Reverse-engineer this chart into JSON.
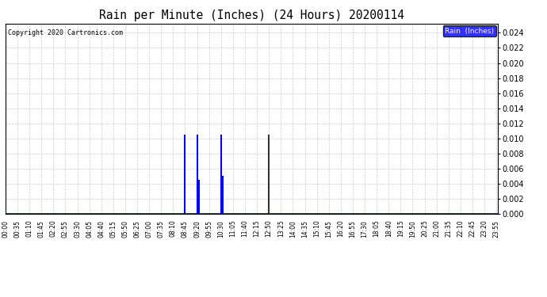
{
  "title": "Rain per Minute (Inches) (24 Hours) 20200114",
  "copyright_text": "Copyright 2020 Cartronics.com",
  "legend_label": "Rain  (Inches)",
  "legend_bg": "#0000ff",
  "legend_fg": "#ffffff",
  "baseline_color": "#0000ff",
  "bg_color": "#ffffff",
  "grid_color": "#cccccc",
  "border_color": "#000000",
  "ylim": [
    0.0,
    0.0252
  ],
  "yticks": [
    0.0,
    0.002,
    0.004,
    0.006,
    0.008,
    0.01,
    0.012,
    0.014,
    0.016,
    0.018,
    0.02,
    0.022,
    0.024
  ],
  "total_minutes": 1440,
  "x_tick_labels": [
    "00:00",
    "00:35",
    "01:10",
    "01:45",
    "02:20",
    "02:55",
    "03:30",
    "04:05",
    "04:40",
    "05:15",
    "05:50",
    "06:25",
    "07:00",
    "07:35",
    "08:10",
    "08:45",
    "09:20",
    "09:55",
    "10:30",
    "11:05",
    "11:40",
    "12:15",
    "12:50",
    "13:25",
    "14:00",
    "14:35",
    "15:10",
    "15:45",
    "16:20",
    "16:55",
    "17:30",
    "18:05",
    "18:40",
    "19:15",
    "19:50",
    "20:25",
    "21:00",
    "21:35",
    "22:10",
    "22:45",
    "23:20",
    "23:55"
  ],
  "spikes": [
    {
      "minute": 525,
      "value": 0.0105,
      "color": "#0000ff"
    },
    {
      "minute": 560,
      "value": 0.0105,
      "color": "#0000ff"
    },
    {
      "minute": 565,
      "value": 0.0045,
      "color": "#0000ff"
    },
    {
      "minute": 630,
      "value": 0.0105,
      "color": "#0000ff"
    },
    {
      "minute": 635,
      "value": 0.005,
      "color": "#0000ff"
    },
    {
      "minute": 770,
      "value": 0.0105,
      "color": "#333333"
    }
  ]
}
